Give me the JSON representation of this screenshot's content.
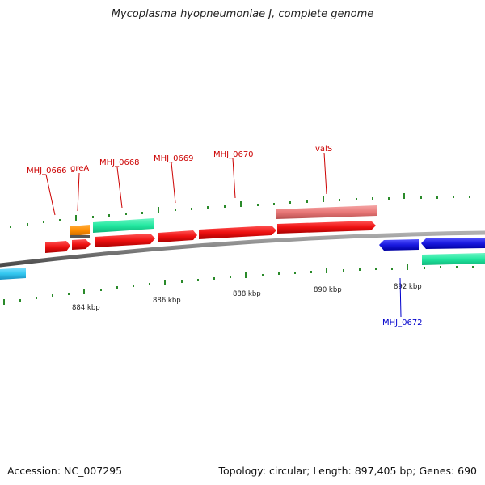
{
  "map": {
    "title": "Mycoplasma hyopneumoniae J, complete genome",
    "accession": "Accession: NC_007295",
    "summary": "Topology: circular; Length: 897,405 bp; Genes: 690"
  },
  "ticks": [
    {
      "label": "884 kbp"
    },
    {
      "label": "886 kbp"
    },
    {
      "label": "888 kbp"
    },
    {
      "label": "890 kbp"
    },
    {
      "label": "892 kbp"
    }
  ],
  "genes": [
    {
      "name": "MHJ_0666",
      "color": "#cc0000"
    },
    {
      "name": "greA",
      "color": "#cc0000"
    },
    {
      "name": "MHJ_0668",
      "color": "#cc0000"
    },
    {
      "name": "MHJ_0669",
      "color": "#cc0000"
    },
    {
      "name": "MHJ_0670",
      "color": "#cc0000"
    },
    {
      "name": "valS",
      "color": "#cc0000"
    },
    {
      "name": "MHJ_0672",
      "color": "#0000cc"
    }
  ],
  "colors": {
    "forward_cds": "#ee1111",
    "reverse_cds": "#1a1ae0",
    "trna": "#ff8c00",
    "rrna_like_green": "#22e8a0",
    "light_blue": "#33c8f0",
    "pink_feature": "#e87878",
    "backbone": "#808080",
    "tick": "#2a8a2a"
  },
  "icons": [
    "forward-arrow-icon",
    "reverse-arrow-icon"
  ]
}
